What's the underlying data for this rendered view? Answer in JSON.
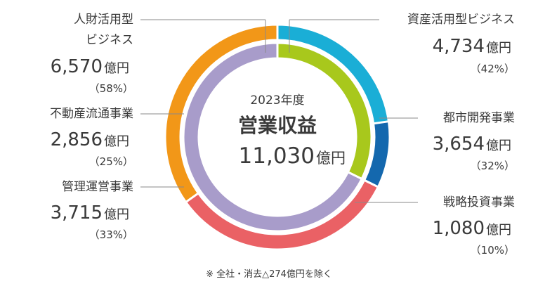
{
  "chart_data": {
    "type": "pie",
    "center": {
      "year": "2023年度",
      "title": "営業収益",
      "total": "11,030",
      "total_unit": "億円"
    },
    "outer_ring": [
      {
        "name": "資産活用型ビジネス",
        "value_text": "4,734",
        "value": 4734,
        "unit": "億円",
        "pct": "（42%）",
        "color": "#1aaed6"
      },
      {
        "name": "人財活用型ビジネス",
        "value_text": "6,570",
        "value": 6570,
        "unit": "億円",
        "pct": "（58%）",
        "color": "#f29718"
      }
    ],
    "inner_ring": [
      {
        "name": "都市開発事業",
        "value_text": "3,654",
        "value": 3654,
        "unit": "億円",
        "pct": "（32%）",
        "color": "#a8c81c"
      },
      {
        "name": "戦略投資事業",
        "value_text": "1,080",
        "value": 1080,
        "unit": "億円",
        "pct": "（10%）",
        "color": "#1468ae"
      },
      {
        "name": "管理運営事業",
        "value_text": "3,715",
        "value": 3715,
        "unit": "億円",
        "pct": "（33%）",
        "color": "#ea6165"
      },
      {
        "name": "不動産流通事業",
        "value_text": "2,856",
        "value": 2856,
        "unit": "億円",
        "pct": "（25%）",
        "color": "#f29718"
      }
    ],
    "inner_overlay_color": "#a89cca",
    "labels": {
      "asset_line1": "資産活用型ビジネス",
      "human_line1": "人財活用型",
      "human_line2": "ビジネス"
    },
    "footnote": "※ 全社・消去△274億円を除く"
  }
}
